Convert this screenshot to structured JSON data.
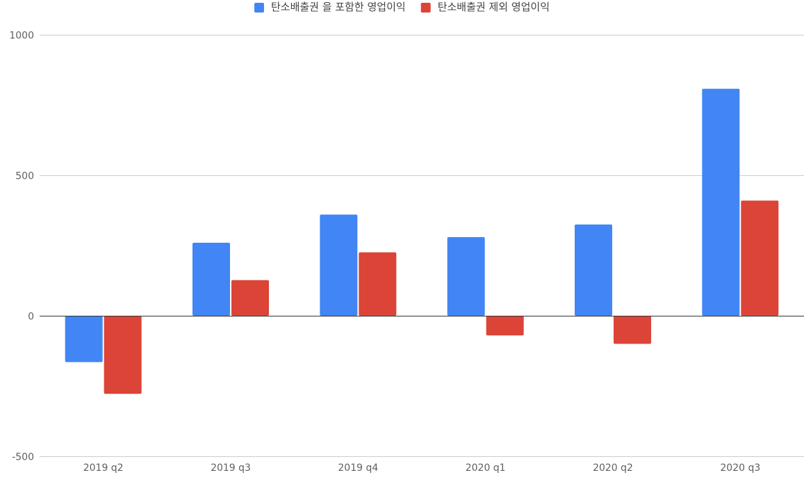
{
  "chart_data": {
    "type": "bar",
    "title": "",
    "xlabel": "",
    "ylabel": "",
    "categories": [
      "2019 q2",
      "2019 q3",
      "2019 q4",
      "2020 q1",
      "2020 q2",
      "2020 q3"
    ],
    "series": [
      {
        "name": "탄소배출권 을 포함한 영업이익",
        "color": "#4285f4",
        "values": [
          -165,
          260,
          360,
          280,
          325,
          808
        ]
      },
      {
        "name": "탄소배출권 제외 영업이익",
        "color": "#db4437",
        "values": [
          -278,
          127,
          226,
          -70,
          -100,
          410
        ]
      }
    ],
    "ylim": [
      -500,
      1000
    ],
    "yticks": [
      1000,
      500,
      0,
      -500
    ],
    "grid": true,
    "legend": "top-center"
  }
}
